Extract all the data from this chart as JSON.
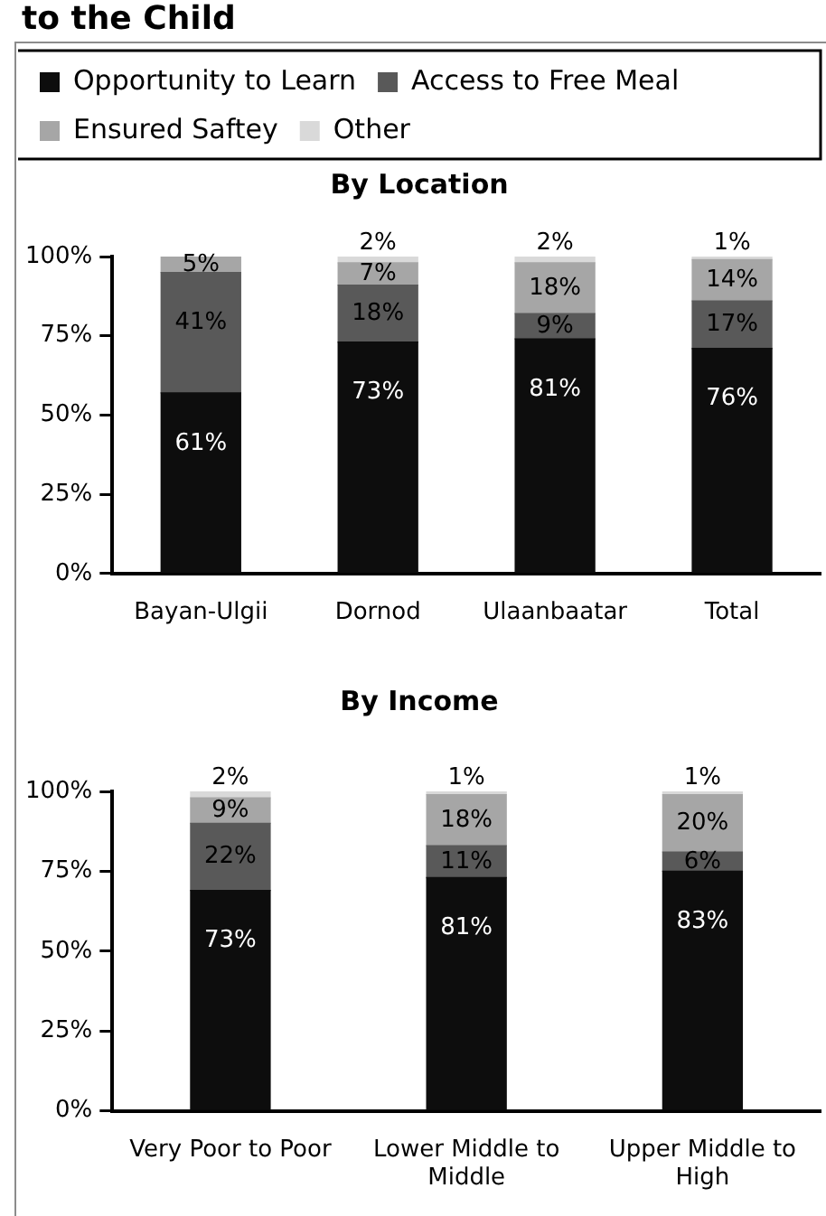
{
  "chart_data": [
    {
      "type": "bar",
      "stacked": true,
      "title": "By Location",
      "legend": "top",
      "annotations": [
        "to the Child",
        {
          "text": "61%",
          "x": "Bayan-Ulgii",
          "y": 57
        },
        {
          "text": "41%",
          "x": "Bayan-Ulgii",
          "y": 95
        },
        {
          "text": "5%",
          "x": "Bayan-Ulgii",
          "y": 100
        },
        {
          "text": "73%",
          "x": "Dornod",
          "y": 73
        },
        {
          "text": "18%",
          "x": "Dornod",
          "y": 91
        },
        {
          "text": "7%",
          "x": "Dornod",
          "y": 98
        },
        {
          "text": "2%",
          "x": "Dornod",
          "y": 100
        },
        {
          "text": "81%",
          "x": "Ulaanbaatar",
          "y": 74
        },
        {
          "text": "9%",
          "x": "Ulaanbaatar",
          "y": 82
        },
        {
          "text": "18%",
          "x": "Ulaanbaatar",
          "y": 98
        },
        {
          "text": "2%",
          "x": "Ulaanbaatar",
          "y": 100
        },
        {
          "text": "76%",
          "x": "Total",
          "y": 71
        },
        {
          "text": "17%",
          "x": "Total",
          "y": 86
        },
        {
          "text": "14%",
          "x": "Total",
          "y": 99
        },
        {
          "text": "1%",
          "x": "Total",
          "y": 100
        }
      ],
      "categories": [
        "Bayan-Ulgii",
        "Dornod",
        "Ulaanbaatar",
        "Total"
      ],
      "ylim": [
        0,
        100
      ],
      "yticks": [
        {
          "value": 0,
          "label": "0%"
        },
        {
          "value": 25,
          "label": "25%"
        },
        {
          "value": 50,
          "label": "50%"
        },
        {
          "value": 75,
          "label": "75%"
        },
        {
          "value": 100,
          "label": "100%"
        }
      ],
      "series": [
        {
          "name": "Opportunity to Learn",
          "color": "#0d0d0d",
          "values": [
            57,
            73,
            74,
            71
          ]
        },
        {
          "name": "Access to Free Meal",
          "color": "#595959",
          "values": [
            38,
            18,
            8,
            15
          ]
        },
        {
          "name": "Ensured Saftey",
          "color": "#a6a6a6",
          "values": [
            5,
            7,
            16,
            13
          ]
        },
        {
          "name": "Other",
          "color": "#d9d9d9",
          "values": [
            null,
            2,
            2,
            1
          ]
        }
      ]
    },
    {
      "type": "bar",
      "stacked": true,
      "title": "By Income",
      "annotations": [
        {
          "text": "73%",
          "x": "Very Poor to Poor",
          "y": 69
        },
        {
          "text": "22%",
          "x": "Very Poor to Poor",
          "y": 90
        },
        {
          "text": "9%",
          "x": "Very Poor to Poor",
          "y": 98
        },
        {
          "text": "2%",
          "x": "Very Poor to Poor",
          "y": 100
        },
        {
          "text": "81%",
          "x": "Lower Middle to Middle",
          "y": 73
        },
        {
          "text": "11%",
          "x": "Lower Middle to Middle",
          "y": 83
        },
        {
          "text": "18%",
          "x": "Lower Middle to Middle",
          "y": 99
        },
        {
          "text": "1%",
          "x": "Lower Middle to Middle",
          "y": 100
        },
        {
          "text": "83%",
          "x": "Upper Middle to High",
          "y": 75
        },
        {
          "text": "6%",
          "x": "Upper Middle to High",
          "y": 81
        },
        {
          "text": "20%",
          "x": "Upper Middle to High",
          "y": 99
        },
        {
          "text": "1%",
          "x": "Upper Middle to High",
          "y": 100
        }
      ],
      "categories": [
        "Very Poor to Poor",
        "Lower Middle to Middle",
        "Upper Middle to High"
      ],
      "ylim": [
        0,
        100
      ],
      "yticks": [
        {
          "value": 0,
          "label": "0%"
        },
        {
          "value": 25,
          "label": "25%"
        },
        {
          "value": 50,
          "label": "50%"
        },
        {
          "value": 75,
          "label": "75%"
        },
        {
          "value": 100,
          "label": "100%"
        }
      ],
      "series": [
        {
          "color": "#0d0d0d",
          "values": [
            69,
            73,
            75
          ]
        },
        {
          "color": "#595959",
          "values": [
            21,
            10,
            6
          ]
        },
        {
          "color": "#a6a6a6",
          "values": [
            8,
            16,
            18
          ]
        },
        {
          "color": "#d9d9d9",
          "values": [
            2,
            1,
            1
          ]
        }
      ]
    }
  ]
}
